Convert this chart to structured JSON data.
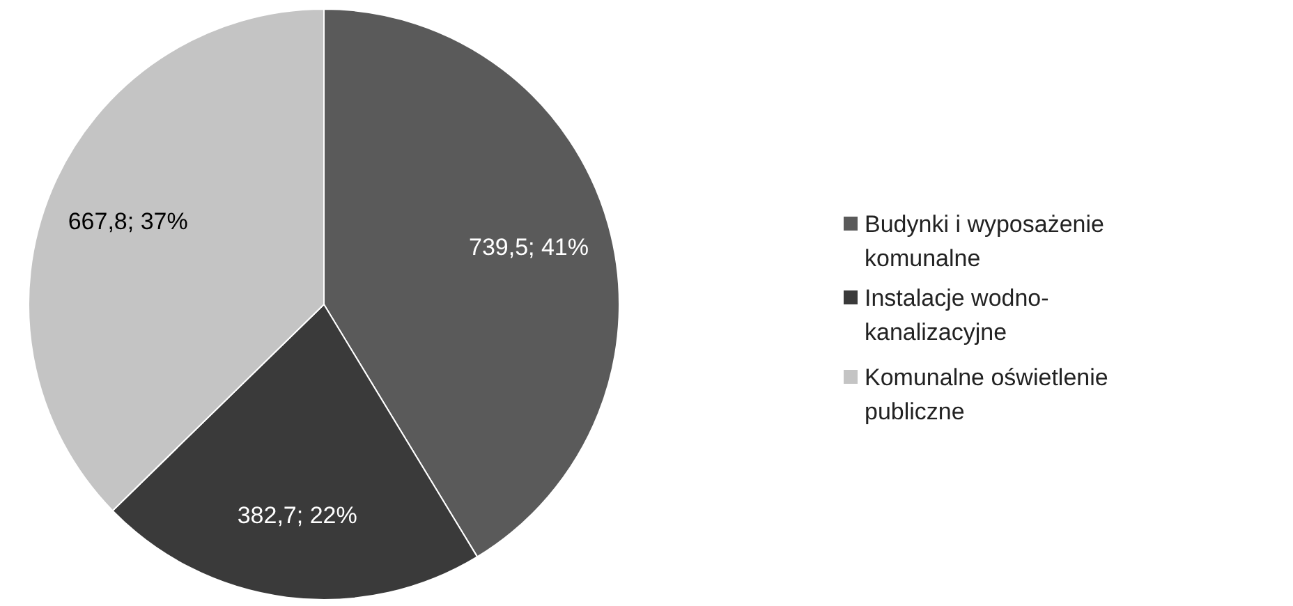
{
  "chart_data": {
    "type": "pie",
    "categories": [
      "Budynki i wyposażenie komunalne",
      "Instalacje wodno-kanalizacyjne",
      "Komunalne oświetlenie publiczne"
    ],
    "values": [
      739.5,
      382.7,
      667.8
    ],
    "colors": [
      "#5a5a5a",
      "#3a3a3a",
      "#c4c4c4"
    ],
    "value_labels": [
      "739,5; 41%",
      "382,7; 22%",
      "667,8; 37%"
    ],
    "legend": "right"
  }
}
